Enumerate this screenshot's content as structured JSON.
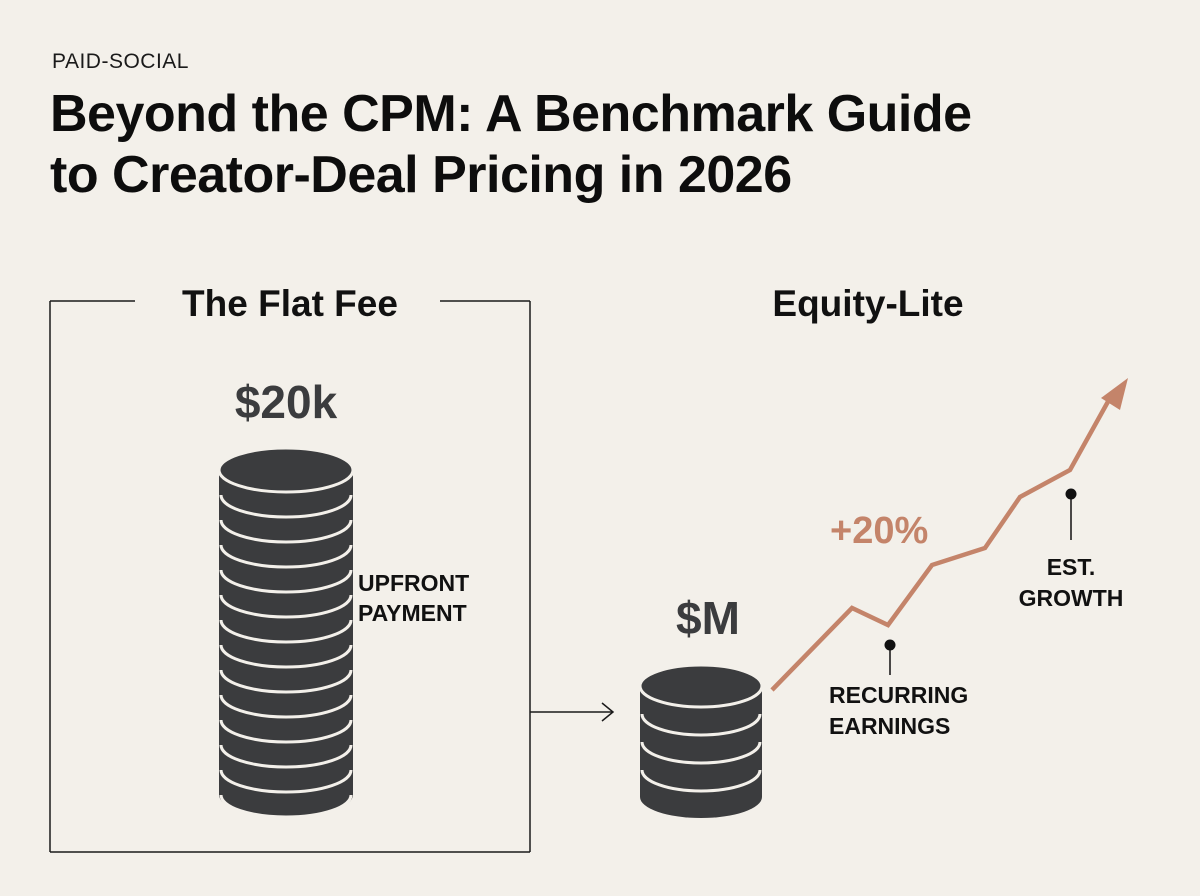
{
  "header": {
    "kicker": "PAID-SOCIAL",
    "title_line1": "Beyond the CPM: A Benchmark Guide",
    "title_line2": "to Creator-Deal Pricing in 2026"
  },
  "flat_fee": {
    "heading": "The Flat Fee",
    "amount": "$20k",
    "label_line1": "UPFRONT",
    "label_line2": "PAYMENT"
  },
  "equity_lite": {
    "heading": "Equity-Lite",
    "amount": "$M",
    "growth_label": "+20%",
    "recurring_line1": "RECURRING",
    "recurring_line2": "EARNINGS",
    "est_line1": "EST.",
    "est_line2": "GROWTH"
  },
  "colors": {
    "background": "#f3f0ea",
    "coin": "#3b3c3e",
    "accent": "#c4846a",
    "text": "#111111"
  }
}
